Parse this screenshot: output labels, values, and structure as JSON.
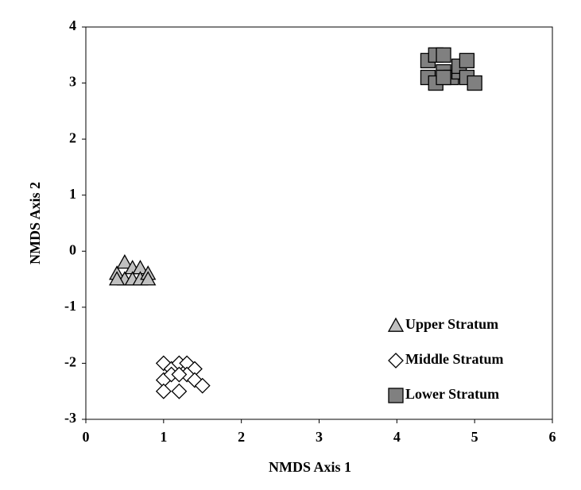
{
  "chart_data": {
    "type": "scatter",
    "x_label": "NMDS Axis 1",
    "y_label": "NMDS Axis 2",
    "xlim": [
      0,
      6
    ],
    "xticks": [
      0,
      1,
      2,
      3,
      4,
      5,
      6
    ],
    "ylim": [
      -3,
      4
    ],
    "yticks": [
      -3,
      -2,
      -1,
      0,
      1,
      2,
      3,
      4
    ],
    "legend": "lower right",
    "series": [
      {
        "name": "Upper Stratum",
        "marker": "triangle",
        "color": "#c0c0c0",
        "x": [
          0.4,
          0.5,
          0.5,
          0.6,
          0.6,
          0.7,
          0.7,
          0.8,
          0.4,
          0.8
        ],
        "y": [
          -0.4,
          -0.2,
          -0.5,
          -0.3,
          -0.5,
          -0.3,
          -0.5,
          -0.4,
          -0.5,
          -0.5
        ]
      },
      {
        "name": "Middle Stratum",
        "marker": "diamond",
        "color": "#ffffff",
        "x": [
          1.0,
          1.1,
          1.2,
          1.3,
          1.4,
          1.0,
          1.1,
          1.3,
          1.4,
          1.5,
          1.0,
          1.2,
          1.2
        ],
        "y": [
          -2.0,
          -2.1,
          -2.0,
          -2.0,
          -2.1,
          -2.3,
          -2.2,
          -2.2,
          -2.3,
          -2.4,
          -2.5,
          -2.5,
          -2.2
        ]
      },
      {
        "name": "Lower Stratum",
        "marker": "square",
        "color": "#808080",
        "x": [
          4.4,
          4.4,
          4.5,
          4.5,
          4.6,
          4.6,
          4.7,
          4.8,
          4.8,
          4.9,
          4.9,
          5.0,
          4.6
        ],
        "y": [
          3.4,
          3.1,
          3.5,
          3.0,
          3.5,
          3.2,
          3.1,
          3.2,
          3.3,
          3.4,
          3.1,
          3.0,
          3.1
        ]
      }
    ]
  }
}
